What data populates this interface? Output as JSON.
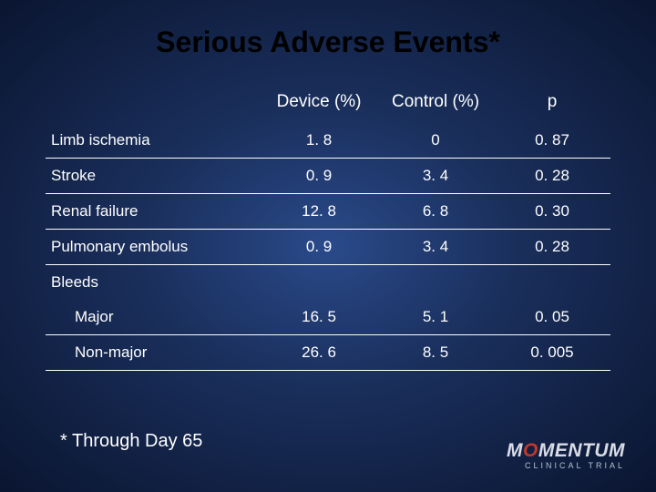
{
  "background": {
    "gradient_center": "#2a4a8a",
    "gradient_mid": "#1a2f5c",
    "gradient_edge": "#0a1530"
  },
  "title": "Serious Adverse Events*",
  "title_color": "#000000",
  "title_fontsize": 32,
  "text_color": "#ffffff",
  "table": {
    "columns": [
      "",
      "Device (%)",
      "Control (%)",
      "p"
    ],
    "col_widths_pct": [
      38,
      20.6,
      20.6,
      20.6
    ],
    "header_fontsize": 19,
    "cell_fontsize": 17,
    "rule_color": "#ffffff",
    "rows": [
      {
        "label": "Limb ischemia",
        "device": "1. 8",
        "control": "0",
        "p": "0. 87",
        "indent": false,
        "rule": true
      },
      {
        "label": "Stroke",
        "device": "0. 9",
        "control": "3. 4",
        "p": "0. 28",
        "indent": false,
        "rule": true
      },
      {
        "label": "Renal failure",
        "device": "12. 8",
        "control": "6. 8",
        "p": "0. 30",
        "indent": false,
        "rule": true
      },
      {
        "label": "Pulmonary embolus",
        "device": "0. 9",
        "control": "3. 4",
        "p": "0. 28",
        "indent": false,
        "rule": true
      },
      {
        "label": "Bleeds",
        "device": "",
        "control": "",
        "p": "",
        "indent": false,
        "rule": false
      },
      {
        "label": "Major",
        "device": "16. 5",
        "control": "5. 1",
        "p": "0. 05",
        "indent": true,
        "rule": true
      },
      {
        "label": "Non-major",
        "device": "26. 6",
        "control": "8. 5",
        "p": "0. 005",
        "indent": true,
        "rule": true
      }
    ]
  },
  "footnote": "* Through Day 65",
  "footnote_fontsize": 20,
  "logo": {
    "pre": "M",
    "accent": "O",
    "post": "MENTUM",
    "sub": "CLINICAL TRIAL",
    "main_color": "#d8dde6",
    "accent_color": "#c0392b",
    "sub_color": "#b8c0ce"
  }
}
